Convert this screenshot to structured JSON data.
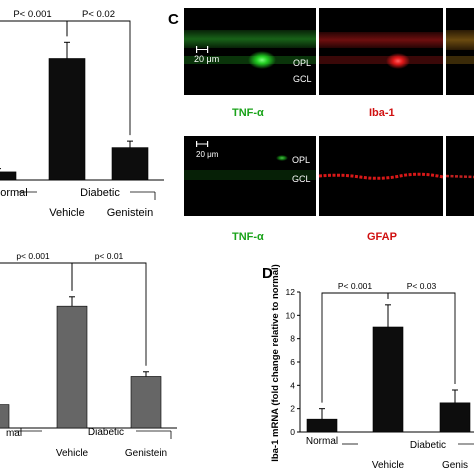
{
  "panels": {
    "C": {
      "letter": "C",
      "row1": {
        "scale": "20 μm",
        "layer_top": "OPL",
        "layer_bottom": "GCL",
        "caption_green": "TNF-α",
        "caption_red": "Iba-1"
      },
      "row2": {
        "scale": "20 μm",
        "layer_top": "OPL",
        "layer_bottom": "GCL",
        "caption_green": "TNF-α",
        "caption_red": "GFAP"
      }
    },
    "D": {
      "letter": "D"
    }
  },
  "colors": {
    "panel_bg": "#000000",
    "green_stain": "#2fd42f",
    "red_stain": "#e01818",
    "green_caption": "#1aa31a",
    "red_caption": "#d01010",
    "bar_black": "#0d0d0d",
    "bar_gray": "#666666"
  },
  "chart_data": [
    {
      "type": "bar",
      "panel": "top-left",
      "categories": [
        "Normal",
        "Vehicle",
        "Genistein"
      ],
      "values": [
        0.5,
        7.5,
        2.0
      ],
      "errors": [
        0.2,
        1.0,
        0.4
      ],
      "ylim": [
        0,
        10
      ],
      "tick_labels": [
        "ormal",
        "Vehicle",
        "Genistein"
      ],
      "group_label": "Diabetic",
      "sig": [
        {
          "from": 0,
          "to": 1,
          "label": "P< 0.001"
        },
        {
          "from": 1,
          "to": 2,
          "label": "P< 0.02"
        }
      ],
      "color": "#0d0d0d"
    },
    {
      "type": "bar",
      "panel": "bottom-left",
      "categories": [
        "Normal",
        "Vehicle",
        "Genistein"
      ],
      "values": [
        1.0,
        5.2,
        2.2
      ],
      "errors": [
        0.2,
        0.4,
        0.2
      ],
      "ylim": [
        0,
        7
      ],
      "tick_labels": [
        "mal",
        "Vehicle",
        "Genistein"
      ],
      "group_label": "Diabetic",
      "sig": [
        {
          "from": 0,
          "to": 1,
          "label": "p< 0.001"
        },
        {
          "from": 1,
          "to": 2,
          "label": "p< 0.01"
        }
      ],
      "color": "#666666"
    },
    {
      "type": "bar",
      "panel": "D",
      "categories": [
        "Normal",
        "Vehicle",
        "Genistein"
      ],
      "values": [
        1.1,
        9.0,
        2.5
      ],
      "errors": [
        0.9,
        1.9,
        1.1
      ],
      "ylim": [
        0,
        12
      ],
      "yticks": [
        0,
        2,
        4,
        6,
        8,
        10,
        12
      ],
      "ylabel": "Iba-1 mRNA (fold change relative to normal)",
      "tick_labels": [
        "Normal",
        "Vehicle",
        "Genis"
      ],
      "group_label": "Diabetic",
      "sig": [
        {
          "from": 0,
          "to": 1,
          "label": "P< 0.001"
        },
        {
          "from": 1,
          "to": 2,
          "label": "P< 0.03"
        }
      ],
      "color": "#0d0d0d"
    }
  ]
}
